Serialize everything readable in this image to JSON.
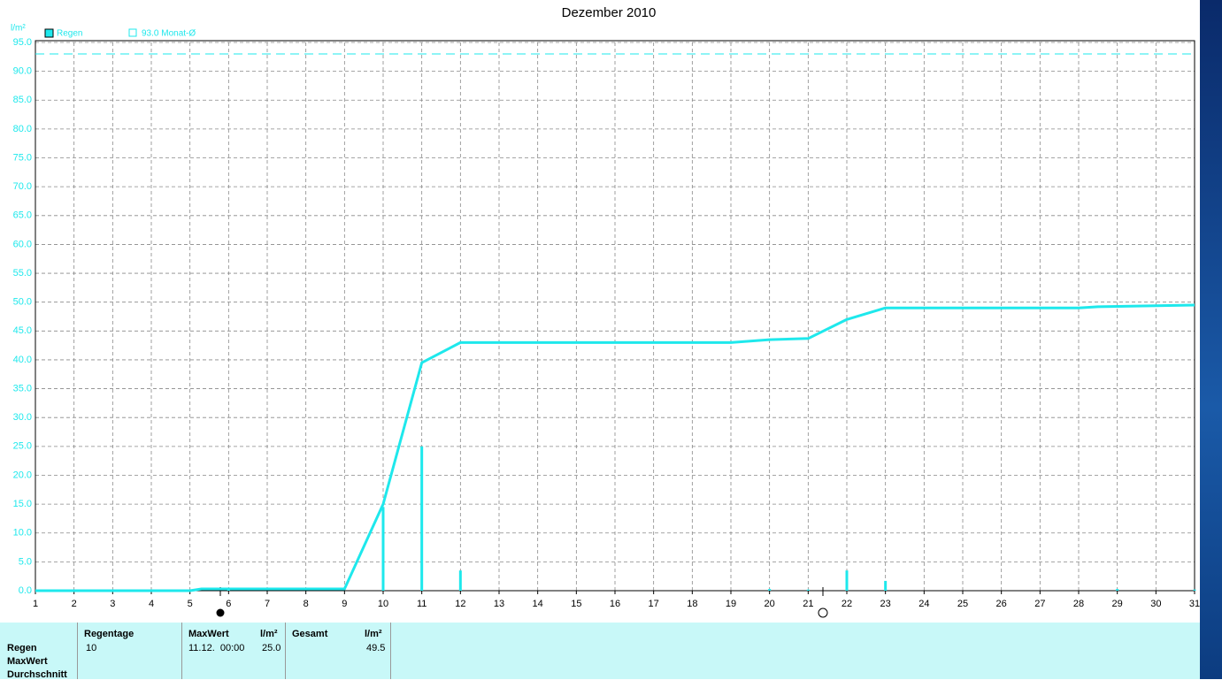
{
  "chart_data": {
    "type": "combo",
    "title": "Dezember 2010",
    "y_label": "l/m²",
    "xlim": [
      1,
      31
    ],
    "ylim": [
      0,
      95
    ],
    "xticks": [
      1,
      2,
      3,
      4,
      5,
      6,
      7,
      8,
      9,
      10,
      11,
      12,
      13,
      14,
      15,
      16,
      17,
      18,
      19,
      20,
      21,
      22,
      23,
      24,
      25,
      26,
      27,
      28,
      29,
      30,
      31
    ],
    "yticks": [
      {
        "value": 0,
        "label": "0.0"
      },
      {
        "value": 5,
        "label": "5.0"
      },
      {
        "value": 10,
        "label": "10.0"
      },
      {
        "value": 15,
        "label": "15.0"
      },
      {
        "value": 20,
        "label": "20.0"
      },
      {
        "value": 25,
        "label": "25.0"
      },
      {
        "value": 30,
        "label": "30.0"
      },
      {
        "value": 35,
        "label": "35.0"
      },
      {
        "value": 40,
        "label": "40.0"
      },
      {
        "value": 45,
        "label": "45.0"
      },
      {
        "value": 50,
        "label": "50.0"
      },
      {
        "value": 55,
        "label": "55.0"
      },
      {
        "value": 60,
        "label": "60.0"
      },
      {
        "value": 65,
        "label": "65.0"
      },
      {
        "value": 70,
        "label": "70.0"
      },
      {
        "value": 75,
        "label": "75.0"
      },
      {
        "value": 80,
        "label": "80.0"
      },
      {
        "value": 85,
        "label": "85.0"
      },
      {
        "value": 90,
        "label": "90.0"
      },
      {
        "value": 95,
        "label": "95.0"
      }
    ],
    "grid": true,
    "series": [
      {
        "name": "Regen",
        "type": "line",
        "color": "#1ee8ec",
        "x": [
          1,
          5,
          5.3,
          9,
          10,
          11,
          12,
          19,
          20,
          21,
          22,
          23,
          28,
          28.5,
          31
        ],
        "values": [
          0,
          0,
          0.3,
          0.3,
          15,
          39.5,
          43,
          43,
          43.5,
          43.7,
          47,
          49,
          49,
          49.2,
          49.5
        ]
      },
      {
        "type": "bar",
        "color": "#1ee8ec",
        "x": [
          6,
          10,
          11,
          12,
          20,
          21,
          22,
          23,
          29,
          31
        ],
        "values": [
          0.3,
          14.5,
          25,
          3.5,
          0.3,
          0.2,
          3.5,
          1.7,
          0.3,
          0.2
        ]
      }
    ],
    "reference": {
      "value": 93,
      "label": "93.0 Monat-Ø",
      "color": "#1ee8ec"
    }
  },
  "table": {
    "row_labels": [
      "Regen",
      "MaxWert",
      "Durchschnitt"
    ],
    "headers": [
      "Regentage",
      "MaxWert",
      "l/m²",
      "Gesamt",
      "l/m²"
    ],
    "values": [
      "10",
      "11.12.  00:00",
      "25.0",
      "49.5"
    ]
  }
}
